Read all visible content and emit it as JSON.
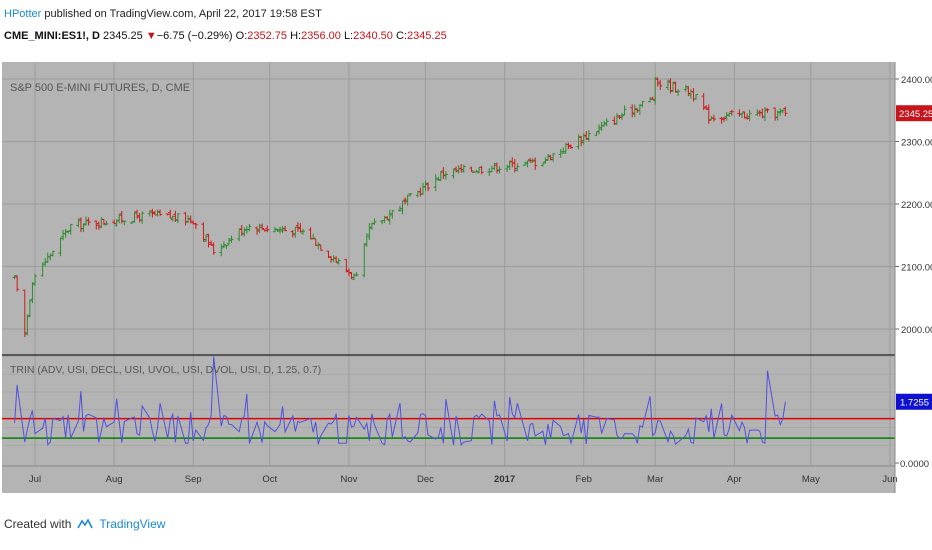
{
  "header": {
    "user": "HPotter",
    "published_text": "published on TradingView.com, April 22, 2017 19:58 EST"
  },
  "ticker": {
    "symbol": "CME_MINI:ES1!, D",
    "last": "2345.25",
    "change": "−6.75 (−0.29%)",
    "open_label": "O:",
    "open": "2352.75",
    "high_label": "H:",
    "high": "2356.00",
    "low_label": "L:",
    "low": "2340.50",
    "close_label": "C:",
    "close": "2345.25"
  },
  "colors": {
    "background": "#b4b4b4",
    "up_candle": "#2e8b2e",
    "down_candle": "#d01818",
    "trin_line": "#5050e0",
    "upper_level": "#e00000",
    "lower_level": "#008000",
    "price_badge": "#c8141b",
    "trin_badge": "#1010d0"
  },
  "chart_data": [
    {
      "type": "candlestick",
      "title": "S&P 500 E-MINI FUTURES, D, CME",
      "ylim": [
        1950,
        2420
      ],
      "yticks": [
        "2400.00",
        "2300.00",
        "2200.00",
        "2100.00",
        "2000.00"
      ],
      "last_price_label": "2345.25",
      "anchors": [
        {
          "date": "2016-06-23",
          "close": 2080
        },
        {
          "date": "2016-06-27",
          "close": 1992
        },
        {
          "date": "2016-06-30",
          "close": 2080
        },
        {
          "date": "2016-07-15",
          "close": 2165
        },
        {
          "date": "2016-08-15",
          "close": 2182
        },
        {
          "date": "2016-09-01",
          "close": 2175
        },
        {
          "date": "2016-09-09",
          "close": 2125
        },
        {
          "date": "2016-09-22",
          "close": 2165
        },
        {
          "date": "2016-10-15",
          "close": 2155
        },
        {
          "date": "2016-11-04",
          "close": 2080
        },
        {
          "date": "2016-11-09",
          "close": 2160
        },
        {
          "date": "2016-12-08",
          "close": 2250
        },
        {
          "date": "2017-01-15",
          "close": 2268
        },
        {
          "date": "2017-02-28",
          "close": 2370
        },
        {
          "date": "2017-03-01",
          "close": 2395
        },
        {
          "date": "2017-03-15",
          "close": 2380
        },
        {
          "date": "2017-03-22",
          "close": 2340
        },
        {
          "date": "2017-04-21",
          "close": 2345.25
        }
      ]
    },
    {
      "type": "line",
      "title": "TRIN (ADV, USI, DECL, USI, UVOL, USI, DVOL, USI, D, 1.25, 0.7)",
      "ylim": [
        0,
        3.1
      ],
      "yticks": [
        "0.0000"
      ],
      "upper_level": 1.25,
      "lower_level": 0.7,
      "last_value_label": "1.7255",
      "baseline": 0.95,
      "spikes": [
        {
          "date": "2016-06-24",
          "value": 2.2
        },
        {
          "date": "2016-09-09",
          "value": 3.0
        },
        {
          "date": "2017-04-14",
          "value": 2.6
        },
        {
          "date": "2017-04-21",
          "value": 1.7255
        }
      ]
    }
  ],
  "x_axis": {
    "labels": [
      "Jul",
      "Aug",
      "Sep",
      "Oct",
      "Nov",
      "Dec",
      "2017",
      "Feb",
      "Mar",
      "Apr",
      "May",
      "Jun"
    ]
  },
  "footer": {
    "created_with": "Created with",
    "brand": "TradingView"
  }
}
